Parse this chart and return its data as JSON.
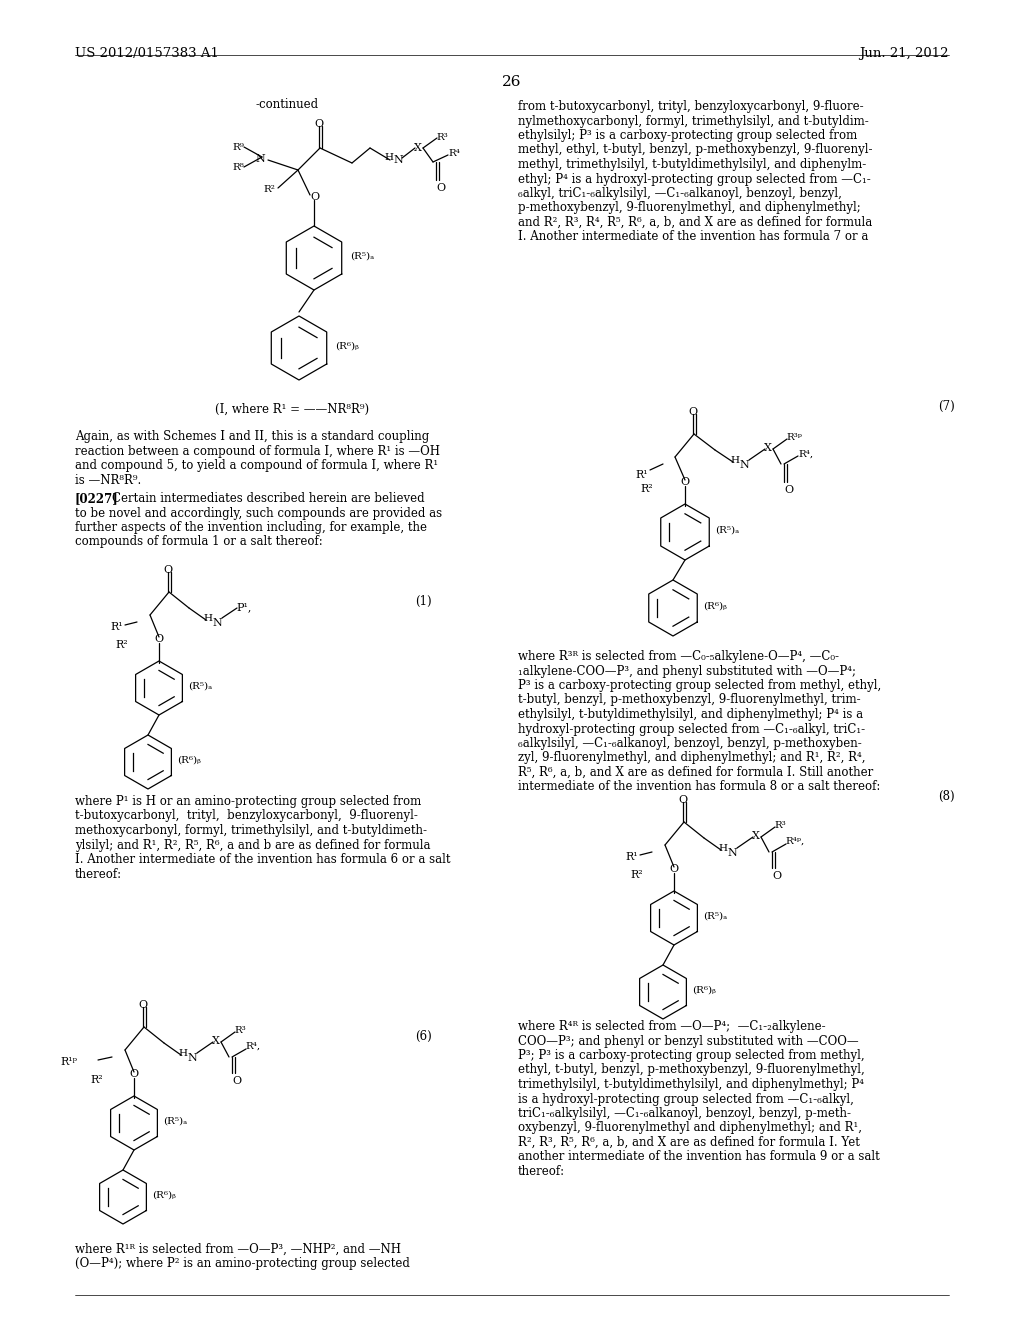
{
  "background_color": "#ffffff",
  "page_number": "26",
  "header_left": "US 2012/0157383 A1",
  "header_right": "Jun. 21, 2012",
  "continued_label": "-continued",
  "right_col_text_top": [
    "from t-butoxycarbonyl, trityl, benzyloxycarbonyl, 9-fluore-",
    "nylmethoxycarbonyl, formyl, trimethylsilyl, and t-butyldim-",
    "ethylsilyl; P³ is a carboxy-protecting group selected from",
    "methyl, ethyl, t-butyl, benzyl, p-methoxybenzyl, 9-fluorenyl-",
    "methyl, trimethylsilyl, t-butyldimethylsilyl, and diphenylm-",
    "ethyl; P⁴ is a hydroxyl-protecting group selected from —C₁-",
    "₆alkyl, triC₁-₆alkylsilyl, —C₁-₆alkanoyl, benzoyl, benzyl,",
    "p-methoxybenzyl, 9-fluorenylmethyl, and diphenylmethyl;",
    "and R², R³, R⁴, R⁵, R⁶, a, b, and X are as defined for formula",
    "I. Another intermediate of the invention has formula 7 or a"
  ],
  "left_col_para1": [
    "Again, as with Schemes I and II, this is a standard coupling",
    "reaction between a compound of formula I, where R¹ is —OH",
    "and compound 5, to yield a compound of formula I, where R¹",
    "is —NR⁸R⁹."
  ],
  "left_col_para2_bold": "[0227]",
  "left_col_para2": [
    "   Certain intermediates described herein are believed",
    "to be novel and accordingly, such compounds are provided as",
    "further aspects of the invention including, for example, the",
    "compounds of formula 1 or a salt thereof:"
  ],
  "right_col_text_7": [
    "where R³ᴿ is selected from —C₀-₅alkylene-O—P⁴, —C₀-",
    "₁alkylene-COO—P³, and phenyl substituted with —O—P⁴;",
    "P³ is a carboxy-protecting group selected from methyl, ethyl,",
    "t-butyl, benzyl, p-methoxybenzyl, 9-fluorenylmethyl, trim-",
    "ethylsilyl, t-butyldimethylsilyl, and diphenylmethyl; P⁴ is a",
    "hydroxyl-protecting group selected from —C₁-₆alkyl, triC₁-",
    "₆alkylsilyl, —C₁-₆alkanoyl, benzoyl, benzyl, p-methoxyben-",
    "zyl, 9-fluorenylmethyl, and diphenylmethyl; and R¹, R², R⁴,",
    "R⁵, R⁶, a, b, and X are as defined for formula I. Still another",
    "intermediate of the invention has formula 8 or a salt thereof:"
  ],
  "left_col_p1_text": [
    "where P¹ is H or an amino-protecting group selected from",
    "t-butoxycarbonyl,  trityl,  benzyloxycarbonyl,  9-fluorenyl-",
    "methoxycarbonyl, formyl, trimethylsilyl, and t-butyldimeth-",
    "ylsilyl; and R¹, R², R⁵, R⁶, a and b are as defined for formula",
    "I. Another intermediate of the invention has formula 6 or a salt",
    "thereof:"
  ],
  "right_col_text_8": [
    "where R⁴ᴿ is selected from —O—P⁴;  —C₁-₂alkylene-",
    "COO—P³; and phenyl or benzyl substituted with —COO—",
    "P³; P³ is a carboxy-protecting group selected from methyl,",
    "ethyl, t-butyl, benzyl, p-methoxybenzyl, 9-fluorenylmethyl,",
    "trimethylsilyl, t-butyldimethylsilyl, and diphenylmethyl; P⁴",
    "is a hydroxyl-protecting group selected from —C₁-₆alkyl,",
    "triC₁-₆alkylsilyl, —C₁-₆alkanoyl, benzoyl, benzyl, p-meth-",
    "oxybenzyl, 9-fluorenylmethyl and diphenylmethyl; and R¹,",
    "R², R³, R⁵, R⁶, a, b, and X are as defined for formula I. Yet",
    "another intermediate of the invention has formula 9 or a salt",
    "thereof:"
  ],
  "left_col_r1p_text": [
    "where R¹ᴿ is selected from —O—P³, —NHP², and —NH",
    "(O—P⁴); where P² is an amino-protecting group selected"
  ]
}
